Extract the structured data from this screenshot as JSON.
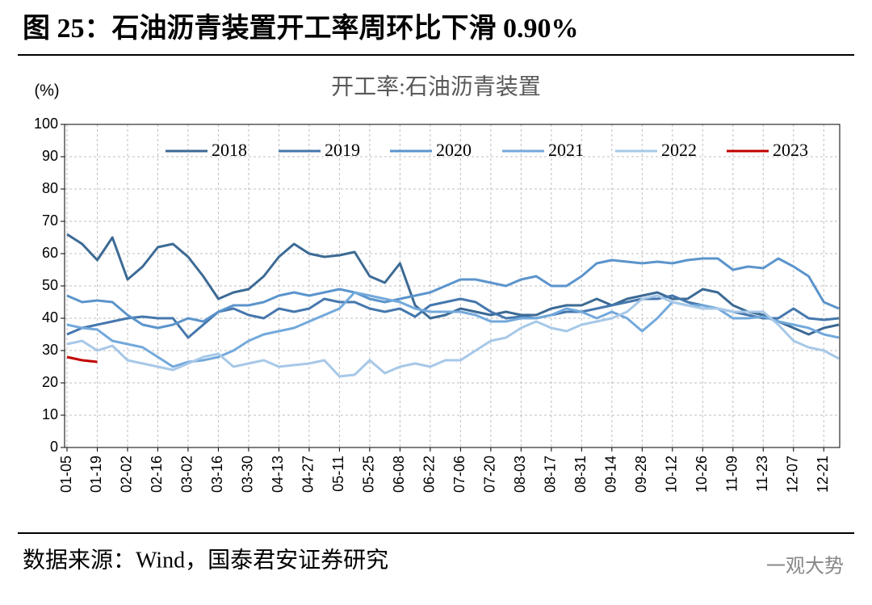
{
  "header": {
    "title": "图 25：石油沥青装置开工率周环比下滑 0.90%"
  },
  "chart_data": {
    "type": "line",
    "title": "开工率:石油沥青装置",
    "ylabel": "(%)",
    "categories": [
      "01-05",
      null,
      "01-19",
      null,
      "02-02",
      null,
      "02-16",
      null,
      "03-02",
      null,
      "03-16",
      null,
      "03-30",
      null,
      "04-13",
      null,
      "04-27",
      null,
      "05-11",
      null,
      "05-25",
      null,
      "06-08",
      null,
      "06-22",
      null,
      "07-06",
      null,
      "07-20",
      null,
      "08-03",
      null,
      "08-17",
      null,
      "08-31",
      null,
      "09-14",
      null,
      "09-28",
      null,
      "10-12",
      null,
      "10-26",
      null,
      "11-09",
      null,
      "11-23",
      null,
      "12-07",
      null,
      "12-21",
      null
    ],
    "series": [
      {
        "name": "2018",
        "color": "#3c6a94",
        "values": [
          66,
          63,
          58,
          65,
          52,
          56,
          62,
          63,
          59,
          53,
          46,
          48,
          49,
          53,
          59,
          63,
          60,
          59,
          59.5,
          60.5,
          53,
          51,
          57,
          44,
          40,
          41,
          43,
          42,
          41,
          42,
          41,
          41,
          43,
          44,
          44,
          46,
          44,
          46,
          47,
          48,
          46,
          46,
          49,
          48,
          44,
          42,
          41,
          39,
          37,
          35,
          37,
          38
        ]
      },
      {
        "name": "2019",
        "color": "#4577ad",
        "values": [
          35,
          37,
          38,
          39,
          40,
          40.5,
          40,
          40,
          34,
          38,
          42,
          43,
          41,
          40,
          43,
          42,
          43,
          46,
          45,
          45,
          43,
          42,
          43,
          40.5,
          44,
          45,
          46,
          45,
          42,
          40,
          40.5,
          40,
          41,
          42,
          42,
          43,
          44,
          45,
          46,
          46,
          47,
          45,
          44,
          43,
          42,
          41,
          40,
          40,
          43,
          40,
          39.5,
          40
        ]
      },
      {
        "name": "2020",
        "color": "#5b94cc",
        "values": [
          47,
          45,
          45.5,
          45,
          41,
          38,
          37,
          38,
          40,
          39,
          42,
          44,
          44,
          45,
          47,
          48,
          47,
          48,
          49,
          48,
          46,
          45,
          46,
          47,
          48,
          50,
          52,
          52,
          51,
          50,
          52,
          53,
          50,
          50,
          53,
          57,
          58,
          57.5,
          57,
          57.5,
          57,
          58,
          58.5,
          58.5,
          55,
          56,
          55.5,
          58.5,
          56,
          53,
          45,
          43
        ]
      },
      {
        "name": "2021",
        "color": "#73a9dc",
        "values": [
          38,
          37,
          36.5,
          33,
          32,
          31,
          28,
          25,
          26.5,
          27,
          28,
          30,
          33,
          35,
          36,
          37,
          39,
          41,
          43,
          48,
          47,
          46,
          45,
          43,
          42,
          42,
          42,
          41,
          39,
          39,
          40,
          40,
          41,
          43,
          42,
          40,
          42,
          40,
          36,
          40,
          45,
          44,
          44,
          43,
          40,
          40,
          40.5,
          39,
          38,
          37,
          35,
          34
        ]
      },
      {
        "name": "2022",
        "color": "#a7c8e8",
        "values": [
          32,
          33,
          30,
          31.5,
          27,
          26,
          25,
          24,
          26,
          28,
          29,
          25,
          26,
          27,
          25,
          25.5,
          26,
          27,
          22,
          22.5,
          27,
          23,
          25,
          26,
          25,
          27,
          27,
          30,
          33,
          34,
          37,
          39,
          37,
          36,
          38,
          39,
          40,
          42,
          46,
          47,
          45,
          44,
          43,
          43,
          42,
          42,
          42,
          38,
          33,
          31,
          30,
          27.5
        ]
      },
      {
        "name": "2023",
        "color": "#c00000",
        "values": [
          28,
          27,
          26.5,
          null,
          null,
          null,
          null,
          null,
          null,
          null,
          null,
          null,
          null,
          null,
          null,
          null,
          null,
          null,
          null,
          null,
          null,
          null,
          null,
          null,
          null,
          null,
          null,
          null,
          null,
          null,
          null,
          null,
          null,
          null,
          null,
          null,
          null,
          null,
          null,
          null,
          null,
          null,
          null,
          null,
          null,
          null,
          null,
          null,
          null,
          null,
          null,
          null
        ]
      }
    ],
    "ylim": [
      0,
      100
    ],
    "yticks": [
      0,
      10,
      20,
      30,
      40,
      50,
      60,
      70,
      80,
      90,
      100
    ],
    "grid": true,
    "legend": "top"
  },
  "footer": {
    "source": "数据来源：Wind，国泰君安证券研究",
    "watermark": "一观大势"
  }
}
